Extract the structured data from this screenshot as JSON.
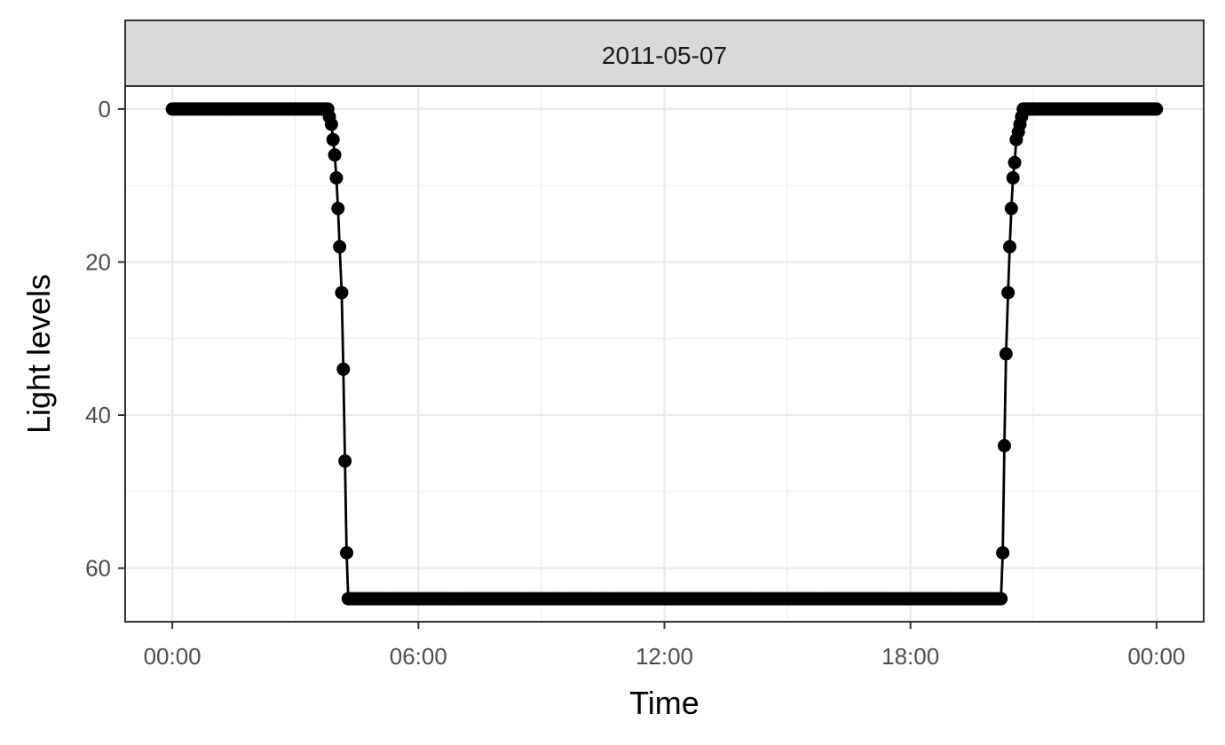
{
  "chart_data": {
    "type": "line",
    "facet_label": "2011-05-07",
    "xlabel": "Time",
    "ylabel": "Light levels",
    "x_unit": "hours",
    "x_ticks": [
      {
        "value": 0,
        "label": "00:00"
      },
      {
        "value": 6,
        "label": "06:00"
      },
      {
        "value": 12,
        "label": "12:00"
      },
      {
        "value": 18,
        "label": "18:00"
      },
      {
        "value": 24,
        "label": "00:00"
      }
    ],
    "y_ticks": [
      0,
      20,
      40,
      60
    ],
    "y_reversed": true,
    "xlim": [
      -1.15,
      25.15
    ],
    "ylim": [
      -3,
      67
    ],
    "grid": true,
    "series": [
      {
        "x": [
          3.79,
          3.83,
          3.88,
          3.92,
          3.96,
          4.0,
          4.04,
          4.08,
          4.13,
          4.17,
          4.21,
          4.25
        ],
        "y": [
          0,
          1,
          2,
          4,
          6,
          9,
          13,
          18,
          24,
          34,
          46,
          58
        ],
        "night_start": 4.29,
        "night_end": 20.25,
        "night_value": 64,
        "sunset_x": [
          20.25,
          20.29,
          20.33,
          20.38,
          20.42,
          20.46,
          20.5,
          20.54,
          20.58,
          20.63,
          20.67,
          20.71,
          20.75,
          20.79,
          20.83
        ],
        "sunset_y": [
          58,
          44,
          32,
          24,
          18,
          13,
          9,
          7,
          4,
          3,
          2,
          1,
          0,
          0,
          0
        ],
        "day_value": 0,
        "interval_minutes": 2.5,
        "range_start": 0,
        "range_end": 24
      }
    ]
  }
}
